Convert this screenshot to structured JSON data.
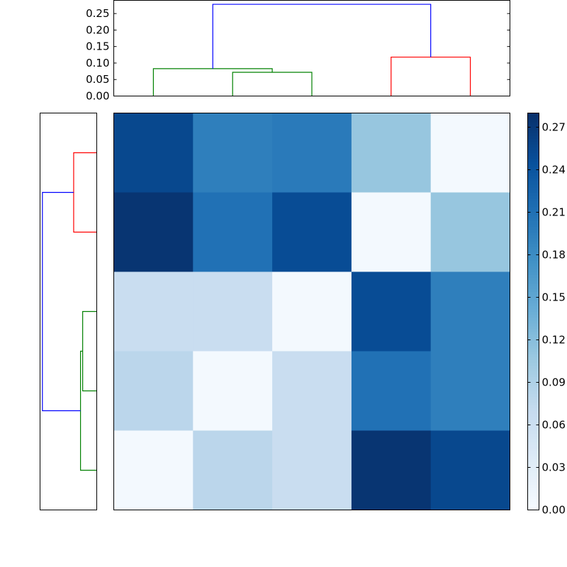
{
  "chart_data": {
    "type": "heatmap",
    "title": "",
    "xlabel": "",
    "ylabel": "",
    "matrix": [
      [
        0.255,
        0.195,
        0.2,
        0.11,
        0.005
      ],
      [
        0.275,
        0.21,
        0.25,
        0.005,
        0.11
      ],
      [
        0.065,
        0.065,
        0.005,
        0.25,
        0.195
      ],
      [
        0.08,
        0.005,
        0.065,
        0.21,
        0.195
      ],
      [
        0.005,
        0.08,
        0.065,
        0.275,
        0.255
      ]
    ],
    "colormap": [
      "#f7fbff",
      "#deebf7",
      "#c6dbef",
      "#9ecae1",
      "#6baed6",
      "#4292c6",
      "#2171b5",
      "#08519c",
      "#08306b"
    ],
    "colorbar": {
      "min": 0.0,
      "max": 0.28,
      "tick_labels": [
        "0.00",
        "0.03",
        "0.06",
        "0.09",
        "0.12",
        "0.15",
        "0.18",
        "0.21",
        "0.24",
        "0.27"
      ],
      "tick_values": [
        0.0,
        0.03,
        0.06,
        0.09,
        0.12,
        0.15,
        0.18,
        0.21,
        0.24,
        0.27
      ]
    },
    "top_dendrogram": {
      "ylim": [
        0.0,
        0.29
      ],
      "tick_labels": [
        "0.00",
        "0.05",
        "0.10",
        "0.15",
        "0.20",
        "0.25"
      ],
      "tick_values": [
        0.0,
        0.05,
        0.1,
        0.15,
        0.2,
        0.25
      ],
      "leaf_count": 5,
      "links": [
        {
          "color": "#008000",
          "left_leaf": 1,
          "right_leaf": 2,
          "left_h": 0.0,
          "right_h": 0.0,
          "height": 0.072
        },
        {
          "color": "#008000",
          "left_leaf": 0,
          "right_leaf": 1.5,
          "left_h": 0.0,
          "right_h": 0.072,
          "height": 0.083
        },
        {
          "color": "#ff0000",
          "left_leaf": 3,
          "right_leaf": 4,
          "left_h": 0.0,
          "right_h": 0.0,
          "height": 0.118
        },
        {
          "color": "#0000ff",
          "left_leaf": 0.75,
          "right_leaf": 3.5,
          "left_h": 0.083,
          "right_h": 0.118,
          "height": 0.278
        }
      ]
    },
    "left_dendrogram": {
      "xlim": [
        0.0,
        0.29
      ],
      "leaf_count": 5,
      "links": [
        {
          "color": "#ff0000",
          "left_leaf": 0,
          "right_leaf": 1,
          "left_h": 0.0,
          "right_h": 0.0,
          "height": 0.118
        },
        {
          "color": "#008000",
          "left_leaf": 2,
          "right_leaf": 3,
          "left_h": 0.0,
          "right_h": 0.0,
          "height": 0.072
        },
        {
          "color": "#008000",
          "left_leaf": 2.5,
          "right_leaf": 4,
          "left_h": 0.072,
          "right_h": 0.0,
          "height": 0.083
        },
        {
          "color": "#0000ff",
          "left_leaf": 0.5,
          "right_leaf": 3.25,
          "left_h": 0.118,
          "right_h": 0.083,
          "height": 0.278
        }
      ]
    }
  }
}
